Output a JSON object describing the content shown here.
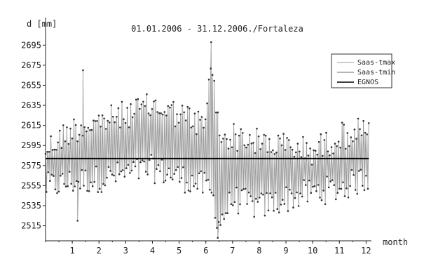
{
  "chart_data": {
    "type": "line",
    "title": "01.01.2006 - 31.12.2006./Fortaleza",
    "ylabel": "d [mm]",
    "xlabel": "month",
    "xlim": [
      0,
      12.2
    ],
    "ylim": [
      2500,
      2705
    ],
    "x_ticks": [
      1,
      2,
      3,
      4,
      5,
      6,
      7,
      8,
      9,
      10,
      11,
      12
    ],
    "y_ticks": [
      2515,
      2535,
      2555,
      2575,
      2595,
      2615,
      2635,
      2655,
      2675,
      2695
    ],
    "grid": false,
    "legend_position": "top-right",
    "series": [
      {
        "name": "Saas-tmax",
        "color": "#9a9a9a",
        "style": "line with dot markers",
        "description_envelope": {
          "x": [
            0,
            1,
            2,
            3,
            4,
            5,
            6,
            6.2,
            6.5,
            7,
            8,
            9,
            10,
            11,
            12.1
          ],
          "upper": [
            2605,
            2625,
            2632,
            2640,
            2648,
            2640,
            2628,
            2698,
            2618,
            2618,
            2612,
            2608,
            2603,
            2618,
            2625
          ]
        }
      },
      {
        "name": "Saas-tmin",
        "color": "#6a6a6a",
        "style": "line with dot markers",
        "description_envelope": {
          "x": [
            0,
            1,
            2,
            3,
            4,
            5,
            6,
            6.2,
            6.5,
            7,
            8,
            9,
            10,
            11,
            12.1
          ],
          "lower": [
            2540,
            2545,
            2548,
            2553,
            2558,
            2550,
            2540,
            2535,
            2503,
            2528,
            2520,
            2528,
            2535,
            2538,
            2550
          ]
        }
      },
      {
        "name": "EGNOS",
        "color": "#000000",
        "style": "solid",
        "x": [
          0,
          12.1
        ],
        "y": [
          2582,
          2582
        ]
      }
    ]
  }
}
